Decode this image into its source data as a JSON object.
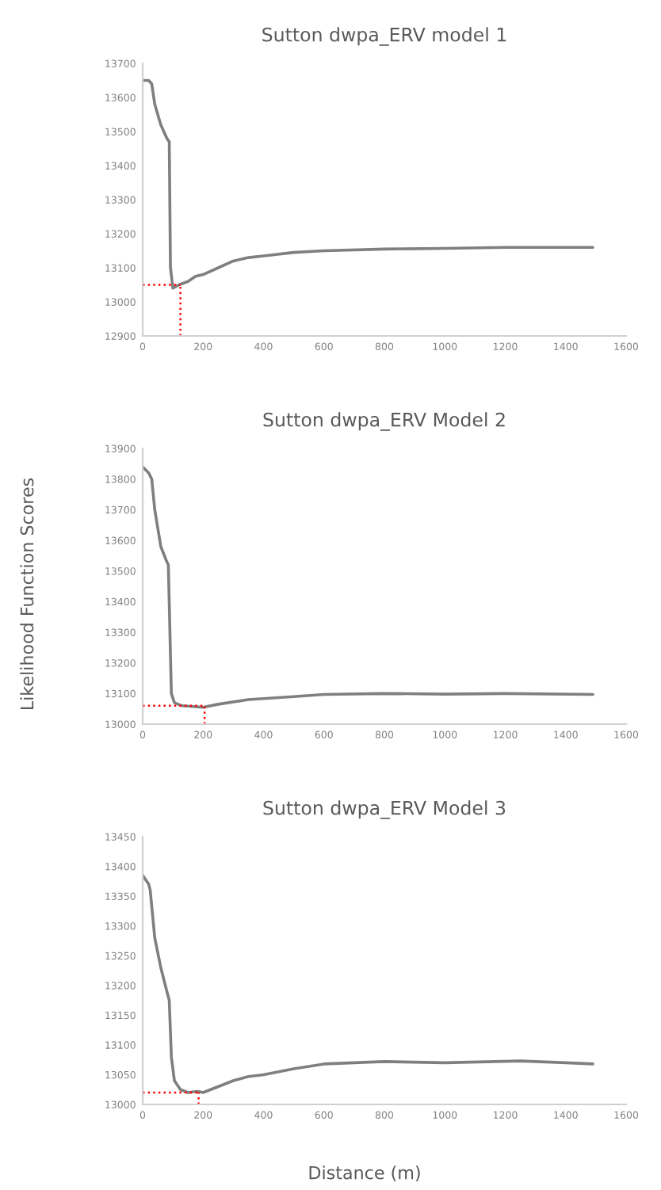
{
  "chart_data": [
    {
      "type": "line",
      "title": "Sutton dwpa_ERV model 1",
      "series": [
        {
          "color": "#7f7f7f",
          "x": [
            0,
            20,
            30,
            40,
            60,
            80,
            88,
            92,
            100,
            120,
            150,
            175,
            200,
            250,
            300,
            350,
            400,
            500,
            600,
            800,
            1000,
            1200,
            1490
          ],
          "values": [
            13650,
            13650,
            13640,
            13580,
            13520,
            13480,
            13470,
            13100,
            13040,
            13050,
            13060,
            13075,
            13080,
            13100,
            13120,
            13130,
            13135,
            13145,
            13150,
            13155,
            13157,
            13160,
            13160
          ]
        },
        {
          "color": "#ff0000",
          "line_style": "dotted",
          "x": [
            0,
            125
          ],
          "values": [
            13050,
            13050
          ]
        },
        {
          "color": "#ff0000",
          "line_style": "dotted",
          "x": [
            125,
            125
          ],
          "values": [
            12900,
            13050
          ]
        }
      ],
      "xlim": [
        0,
        1600
      ],
      "xticks": [
        0,
        200,
        400,
        600,
        800,
        1000,
        1200,
        1400,
        1600
      ],
      "ylim": [
        12900,
        13700
      ],
      "yticks": [
        12900,
        13000,
        13100,
        13200,
        13300,
        13400,
        13500,
        13600,
        13700
      ]
    },
    {
      "type": "line",
      "title": "Sutton dwpa_ERV Model 2",
      "ylabel": "Likelihood Function Scores",
      "series": [
        {
          "color": "#7f7f7f",
          "x": [
            0,
            20,
            30,
            40,
            60,
            80,
            85,
            95,
            105,
            130,
            200,
            250,
            350,
            500,
            600,
            800,
            1000,
            1200,
            1490
          ],
          "values": [
            13840,
            13820,
            13800,
            13700,
            13580,
            13530,
            13520,
            13100,
            13070,
            13060,
            13055,
            13065,
            13080,
            13090,
            13097,
            13100,
            13098,
            13100,
            13097
          ]
        },
        {
          "color": "#ff0000",
          "line_style": "dotted",
          "x": [
            0,
            205
          ],
          "values": [
            13060,
            13060
          ]
        },
        {
          "color": "#ff0000",
          "line_style": "dotted",
          "x": [
            205,
            205
          ],
          "values": [
            13000,
            13060
          ]
        }
      ],
      "xlim": [
        0,
        1600
      ],
      "xticks": [
        0,
        200,
        400,
        600,
        800,
        1000,
        1200,
        1400,
        1600
      ],
      "ylim": [
        13000,
        13900
      ],
      "yticks": [
        13000,
        13100,
        13200,
        13300,
        13400,
        13500,
        13600,
        13700,
        13800,
        13900
      ]
    },
    {
      "type": "line",
      "title": "Sutton dwpa_ERV Model 3",
      "xlabel": "Distance (m)",
      "series": [
        {
          "color": "#7f7f7f",
          "x": [
            0,
            20,
            25,
            40,
            60,
            80,
            88,
            95,
            105,
            125,
            150,
            180,
            200,
            250,
            300,
            350,
            400,
            500,
            600,
            700,
            800,
            1000,
            1250,
            1400,
            1490
          ],
          "values": [
            13385,
            13370,
            13360,
            13280,
            13230,
            13190,
            13175,
            13080,
            13040,
            13025,
            13020,
            13022,
            13020,
            13030,
            13040,
            13047,
            13050,
            13060,
            13068,
            13070,
            13072,
            13070,
            13073,
            13070,
            13068
          ]
        },
        {
          "color": "#ff0000",
          "line_style": "dotted",
          "x": [
            0,
            185
          ],
          "values": [
            13020,
            13020
          ]
        },
        {
          "color": "#ff0000",
          "line_style": "dotted",
          "x": [
            185,
            185
          ],
          "values": [
            13000,
            13020
          ]
        }
      ],
      "xlim": [
        0,
        1600
      ],
      "xticks": [
        0,
        200,
        400,
        600,
        800,
        1000,
        1200,
        1400,
        1600
      ],
      "ylim": [
        13000,
        13450
      ],
      "yticks": [
        13000,
        13050,
        13100,
        13150,
        13200,
        13250,
        13300,
        13350,
        13400,
        13450
      ]
    }
  ]
}
